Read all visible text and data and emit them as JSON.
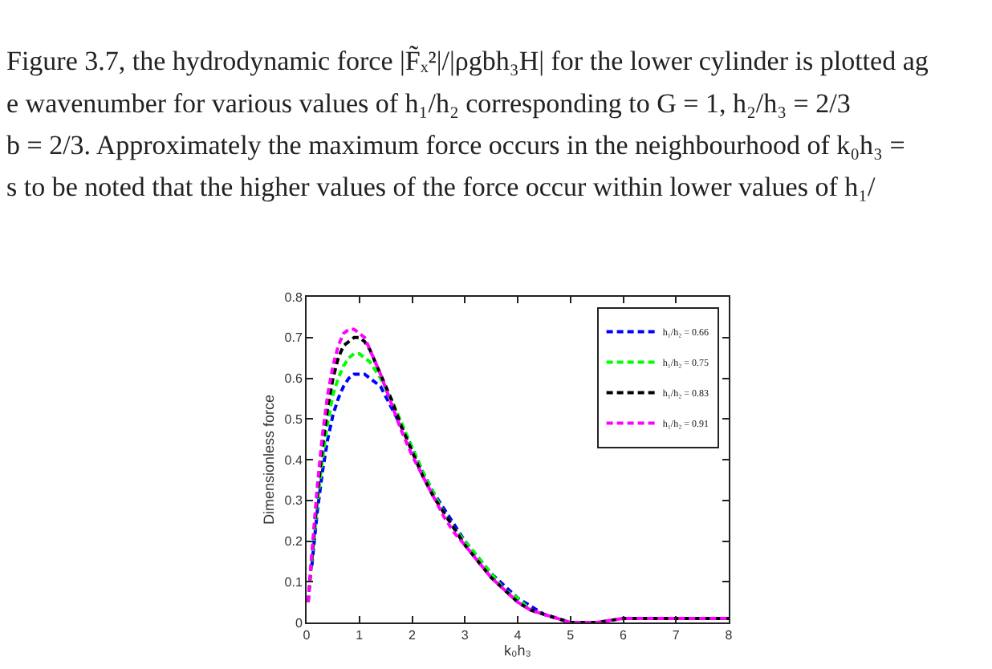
{
  "chart_data": {
    "type": "line",
    "annotations": [
      "Figure 3.7, the hydrodynamic force |F̃ₓ²|/|ρgbh₃H| for the lower cylinder is plotted ag",
      "e wavenumber for various values of h₁/h₂ corresponding to G = 1, h₂/h₃ = 2/3",
      "b = 2/3. Approximately the maximum force occurs in the neighbourhood of k₀h₃ =",
      "s to be noted that the higher values of the force occur within lower values of h₁/"
    ],
    "xlabel": "k₀h₃",
    "ylabel": "Dimensionless force",
    "x": [
      0.03,
      0.1,
      0.2,
      0.3,
      0.4,
      0.5,
      0.6,
      0.7,
      0.8,
      0.9,
      1.0,
      1.1,
      1.2,
      1.4,
      1.6,
      1.8,
      2.0,
      2.2,
      2.4,
      2.6,
      2.8,
      3.0,
      3.25,
      3.5,
      3.75,
      4.0,
      4.25,
      4.5,
      4.75,
      5.0,
      5.15,
      5.5,
      6.0,
      6.5,
      7.0,
      7.5,
      8.0
    ],
    "series": [
      {
        "name": "h₁/h₂ = 0.66",
        "color": "#0000ff",
        "values": [
          null,
          0.14,
          0.27,
          0.37,
          0.45,
          0.51,
          0.55,
          0.58,
          0.6,
          0.61,
          0.61,
          0.61,
          0.6,
          0.58,
          0.53,
          0.48,
          0.43,
          0.37,
          0.32,
          0.28,
          0.24,
          0.2,
          0.16,
          0.12,
          0.09,
          0.06,
          0.04,
          0.02,
          0.01,
          0,
          null,
          null,
          null,
          null,
          null,
          null,
          null
        ]
      },
      {
        "name": "h₁/h₂ = 0.75",
        "color": "#00ff00",
        "values": [
          null,
          0.15,
          0.29,
          0.4,
          0.49,
          0.56,
          0.6,
          0.63,
          0.65,
          0.66,
          0.66,
          0.65,
          0.64,
          0.6,
          0.55,
          0.49,
          0.43,
          0.37,
          0.32,
          0.27,
          0.23,
          0.2,
          0.16,
          0.12,
          0.08,
          0.06,
          0.03,
          null,
          null,
          null,
          null,
          null,
          null,
          null,
          null,
          null,
          null
        ]
      },
      {
        "name": "h₁/h₂ = 0.83",
        "color": "#000000",
        "values": [
          0.05,
          0.16,
          0.31,
          0.43,
          0.53,
          0.6,
          0.65,
          0.68,
          0.69,
          0.7,
          0.7,
          0.69,
          0.67,
          0.61,
          0.55,
          0.48,
          0.42,
          0.36,
          0.31,
          0.27,
          0.23,
          0.19,
          0.15,
          0.11,
          0.08,
          0.05,
          0.03,
          0.02,
          0.01,
          0,
          0,
          0,
          0.01,
          0.01,
          0.01,
          0.01,
          0.01
        ]
      },
      {
        "name": "h₁/h₂ = 0.91",
        "color": "#ff00ff",
        "values": [
          0.05,
          0.17,
          0.33,
          0.46,
          0.56,
          0.63,
          0.68,
          0.71,
          0.72,
          0.72,
          0.71,
          0.7,
          0.67,
          0.61,
          0.54,
          0.47,
          0.41,
          0.36,
          0.31,
          0.26,
          0.22,
          0.19,
          0.15,
          0.11,
          0.08,
          0.05,
          0.03,
          0.02,
          0.01,
          0,
          0,
          0,
          0.01,
          0.01,
          0.01,
          0.01,
          0.01
        ]
      }
    ],
    "xlim": [
      0,
      8
    ],
    "xticks": [
      0,
      1,
      2,
      3,
      4,
      5,
      6,
      7,
      8
    ],
    "ylim": [
      0,
      0.8
    ],
    "yticks": [
      0,
      0.1,
      0.2,
      0.3,
      0.4,
      0.5,
      0.6,
      0.7,
      0.8
    ],
    "legend": "top right",
    "marker": "none",
    "line_style": "dashed"
  }
}
